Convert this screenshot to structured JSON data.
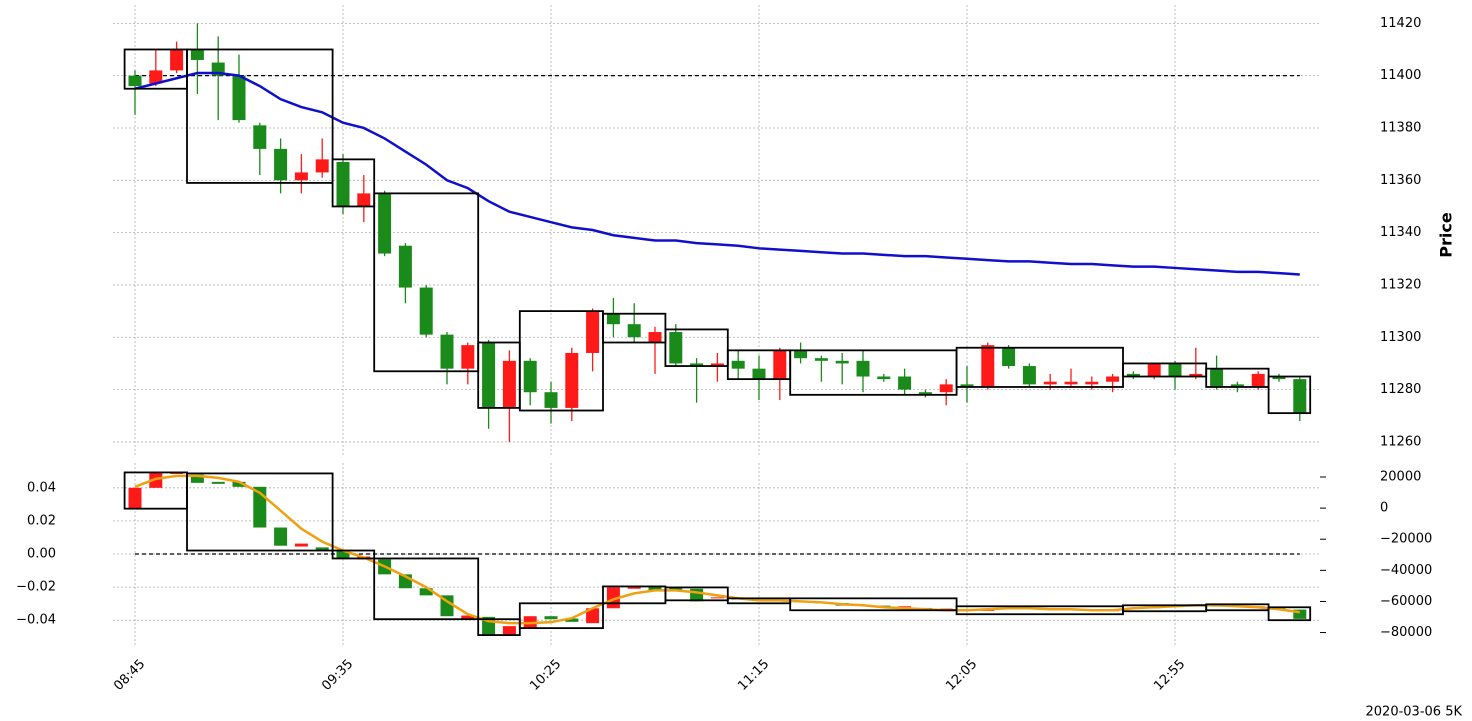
{
  "chart_data": [
    {
      "type": "candlestick",
      "ylabel": "Price",
      "up_color": "#ff1a1a",
      "down_color": "#1a8a1a",
      "grid": true,
      "ylim": [
        11255,
        11427
      ],
      "yticks": [
        11260,
        11280,
        11300,
        11320,
        11340,
        11360,
        11380,
        11400,
        11420
      ],
      "open": [
        11400,
        11397,
        11402,
        11410,
        11405,
        11400,
        11381,
        11372,
        11360,
        11363,
        11367,
        11350,
        11355,
        11335,
        11319,
        11301,
        11288,
        11298,
        11273,
        11291,
        11279,
        11273,
        11294,
        11309,
        11305,
        11298,
        11302,
        11290,
        11289,
        11291,
        11288,
        11284,
        11295,
        11292,
        11291,
        11291,
        11285,
        11285,
        11279,
        11279,
        11282,
        11281,
        11296,
        11289,
        11282,
        11282,
        11282,
        11283,
        11286,
        11285,
        11290,
        11285,
        11288,
        11282,
        11281,
        11285,
        11284
      ],
      "high": [
        11402,
        11410,
        11413,
        11420,
        11415,
        11408,
        11382,
        11376,
        11370,
        11376,
        11370,
        11362,
        11356,
        11336,
        11320,
        11302,
        11298,
        11299,
        11295,
        11292,
        11283,
        11296,
        11311,
        11315,
        11313,
        11304,
        11305,
        11292,
        11294,
        11295,
        11293,
        11296,
        11298,
        11293,
        11294,
        11295,
        11286,
        11288,
        11280,
        11284,
        11289,
        11298,
        11297,
        11290,
        11286,
        11288,
        11285,
        11286,
        11287,
        11290,
        11291,
        11296,
        11293,
        11283,
        11287,
        11286,
        11285
      ],
      "low": [
        11385,
        11396,
        11401,
        11393,
        11383,
        11382,
        11362,
        11355,
        11355,
        11361,
        11347,
        11344,
        11331,
        11313,
        11300,
        11282,
        11282,
        11265,
        11260,
        11274,
        11267,
        11268,
        11287,
        11300,
        11298,
        11286,
        11289,
        11275,
        11283,
        11284,
        11276,
        11276,
        11290,
        11283,
        11282,
        11279,
        11283,
        11278,
        11277,
        11274,
        11275,
        11280,
        11288,
        11281,
        11280,
        11281,
        11280,
        11279,
        11284,
        11284,
        11280,
        11284,
        11280,
        11279,
        11280,
        11283,
        11268
      ],
      "close": [
        11396,
        11402,
        11410,
        11406,
        11400,
        11383,
        11372,
        11360,
        11363,
        11368,
        11350,
        11355,
        11332,
        11319,
        11301,
        11288,
        11297,
        11273,
        11291,
        11279,
        11273,
        11294,
        11310,
        11305,
        11300,
        11302,
        11290,
        11289,
        11290,
        11288,
        11284,
        11295,
        11292,
        11291,
        11290,
        11285,
        11284,
        11280,
        11278,
        11282,
        11281,
        11297,
        11289,
        11282,
        11283,
        11283,
        11283,
        11285,
        11285,
        11290,
        11285,
        11286,
        11281,
        11281,
        11286,
        11284,
        11271
      ],
      "line": {
        "color": "#1010cc",
        "values": [
          11395,
          11397,
          11399,
          11401,
          11401,
          11400,
          11396,
          11391,
          11388,
          11386,
          11382,
          11380,
          11376,
          11371,
          11366,
          11360,
          11357,
          11352,
          11348,
          11346,
          11344,
          11342,
          11341,
          11339,
          11338,
          11337,
          11337,
          11336,
          11335.5,
          11335,
          11334,
          11333.5,
          11333,
          11332.5,
          11332,
          11332,
          11331.5,
          11331,
          11331,
          11330.5,
          11330,
          11329.5,
          11329,
          11329,
          11328.5,
          11328,
          11328,
          11327.5,
          11327,
          11327,
          11326.5,
          11326,
          11325.5,
          11325,
          11325,
          11324.5,
          11324
        ]
      },
      "hline": 11400,
      "boxes": [
        {
          "start": 0,
          "end": 2,
          "low": 11395,
          "high": 11410
        },
        {
          "start": 3,
          "end": 9,
          "low": 11359,
          "high": 11410
        },
        {
          "start": 10,
          "end": 11,
          "low": 11350,
          "high": 11368
        },
        {
          "start": 12,
          "end": 16,
          "low": 11287,
          "high": 11355
        },
        {
          "start": 17,
          "end": 18,
          "low": 11273,
          "high": 11298
        },
        {
          "start": 19,
          "end": 22,
          "low": 11272,
          "high": 11310
        },
        {
          "start": 23,
          "end": 25,
          "low": 11298,
          "high": 11309
        },
        {
          "start": 26,
          "end": 28,
          "low": 11289,
          "high": 11303
        },
        {
          "start": 29,
          "end": 31,
          "low": 11284,
          "high": 11295
        },
        {
          "start": 32,
          "end": 39,
          "low": 11278,
          "high": 11295
        },
        {
          "start": 40,
          "end": 47,
          "low": 11281,
          "high": 11296
        },
        {
          "start": 48,
          "end": 51,
          "low": 11285,
          "high": 11290
        },
        {
          "start": 52,
          "end": 54,
          "low": 11281,
          "high": 11288
        },
        {
          "start": 55,
          "end": 56,
          "low": 11271,
          "high": 11285
        }
      ]
    },
    {
      "type": "candlestick",
      "up_color": "#ff1a1a",
      "down_color": "#1a8a1a",
      "grid": true,
      "categories": [
        "08:45",
        null,
        null,
        null,
        null,
        null,
        null,
        null,
        null,
        null,
        "09:35",
        null,
        null,
        null,
        null,
        null,
        null,
        null,
        null,
        null,
        "10:25",
        null,
        null,
        null,
        null,
        null,
        null,
        null,
        null,
        null,
        "11:15",
        null,
        null,
        null,
        null,
        null,
        null,
        null,
        null,
        null,
        "12:05",
        null,
        null,
        null,
        null,
        null,
        null,
        null,
        null,
        null,
        "12:55",
        null,
        null,
        null,
        null,
        null,
        null
      ],
      "ylim": [
        -0.055,
        0.055
      ],
      "yticks": [
        {
          "value": -0.04,
          "label": "−0.04"
        },
        {
          "value": -0.02,
          "label": "−0.02"
        },
        {
          "value": 0,
          "label": "0.00"
        },
        0.02,
        0.04
      ],
      "y2lim": [
        -88000,
        29000
      ],
      "y2ticks": [
        {
          "value": -80000,
          "label": "−80000"
        },
        {
          "value": -60000,
          "label": "−60000"
        },
        {
          "value": -40000,
          "label": "−40000"
        },
        {
          "value": -20000,
          "label": "−20000"
        },
        0,
        20000
      ],
      "open": [
        0.027,
        0.04,
        0.0484,
        0.048,
        0.0436,
        0.0436,
        0.0406,
        0.016,
        0.0045,
        0.004,
        0.002,
        -0.0033,
        -0.0033,
        -0.0123,
        -0.0207,
        -0.025,
        -0.039,
        -0.038,
        -0.049,
        -0.0448,
        -0.0376,
        -0.039,
        -0.0418,
        -0.0328,
        -0.021,
        -0.0196,
        -0.0205,
        -0.021,
        -0.0268,
        -0.0265,
        -0.0278,
        -0.0284,
        -0.0286,
        -0.0292,
        -0.0296,
        -0.0314,
        -0.0312,
        -0.0322,
        -0.0326,
        -0.0336,
        -0.0332,
        -0.0344,
        -0.0328,
        -0.0326,
        -0.0336,
        -0.0338,
        -0.0342,
        -0.0346,
        -0.0326,
        -0.0328,
        -0.0306,
        -0.0312,
        -0.0308,
        -0.0312,
        -0.0322,
        -0.0328,
        -0.0336
      ],
      "close": [
        0.04,
        0.049,
        0.0494,
        0.043,
        0.0424,
        0.0406,
        0.016,
        0.005,
        0.0063,
        0.002,
        -0.0027,
        -0.0015,
        -0.0123,
        -0.0207,
        -0.025,
        -0.0376,
        -0.0372,
        -0.049,
        -0.0436,
        -0.0376,
        -0.0394,
        -0.041,
        -0.0328,
        -0.0202,
        -0.0196,
        -0.022,
        -0.0215,
        -0.0286,
        -0.0262,
        -0.0275,
        -0.0284,
        -0.0278,
        -0.029,
        -0.0296,
        -0.0312,
        -0.0308,
        -0.0318,
        -0.0316,
        -0.033,
        -0.033,
        -0.0338,
        -0.0334,
        -0.0332,
        -0.0334,
        -0.0332,
        -0.0334,
        -0.0338,
        -0.034,
        -0.033,
        -0.0318,
        -0.0318,
        -0.0308,
        -0.0318,
        -0.0316,
        -0.0316,
        -0.0334,
        -0.0392
      ],
      "line": {
        "color": "#f0a010",
        "values": [
          0.0406,
          0.0454,
          0.0472,
          0.0472,
          0.046,
          0.0436,
          0.037,
          0.0262,
          0.0153,
          0.0075,
          0.0021,
          -0.0021,
          -0.0075,
          -0.0135,
          -0.0201,
          -0.0286,
          -0.0364,
          -0.0406,
          -0.0418,
          -0.0418,
          -0.0412,
          -0.0388,
          -0.0328,
          -0.0274,
          -0.0238,
          -0.022,
          -0.022,
          -0.0232,
          -0.025,
          -0.0268,
          -0.028,
          -0.028,
          -0.0286,
          -0.0292,
          -0.0304,
          -0.031,
          -0.0322,
          -0.0328,
          -0.0334,
          -0.034,
          -0.034,
          -0.0334,
          -0.0328,
          -0.0328,
          -0.0334,
          -0.0334,
          -0.034,
          -0.034,
          -0.0328,
          -0.0322,
          -0.0316,
          -0.031,
          -0.031,
          -0.0316,
          -0.0322,
          -0.0334,
          -0.0352
        ]
      },
      "hline": 0,
      "boxes": [
        {
          "start": 0,
          "end": 2,
          "low": 0.0274,
          "high": 0.0493
        },
        {
          "start": 3,
          "end": 9,
          "low": 0.0021,
          "high": 0.0487
        },
        {
          "start": 10,
          "end": 11,
          "low": -0.0027,
          "high": 0.0021
        },
        {
          "start": 12,
          "end": 16,
          "low": -0.0394,
          "high": -0.0027
        },
        {
          "start": 17,
          "end": 18,
          "low": -0.049,
          "high": -0.0394
        },
        {
          "start": 19,
          "end": 22,
          "low": -0.0448,
          "high": -0.0298
        },
        {
          "start": 23,
          "end": 25,
          "low": -0.0298,
          "high": -0.0196
        },
        {
          "start": 26,
          "end": 28,
          "low": -0.028,
          "high": -0.0202
        },
        {
          "start": 29,
          "end": 31,
          "low": -0.0298,
          "high": -0.0268
        },
        {
          "start": 32,
          "end": 39,
          "low": -0.034,
          "high": -0.0268
        },
        {
          "start": 40,
          "end": 47,
          "low": -0.0364,
          "high": -0.0316
        },
        {
          "start": 48,
          "end": 51,
          "low": -0.0346,
          "high": -0.031
        },
        {
          "start": 52,
          "end": 54,
          "low": -0.034,
          "high": -0.0304
        },
        {
          "start": 55,
          "end": 56,
          "low": -0.04,
          "high": -0.0322
        }
      ],
      "annotation": "2020-03-06 5K"
    }
  ]
}
